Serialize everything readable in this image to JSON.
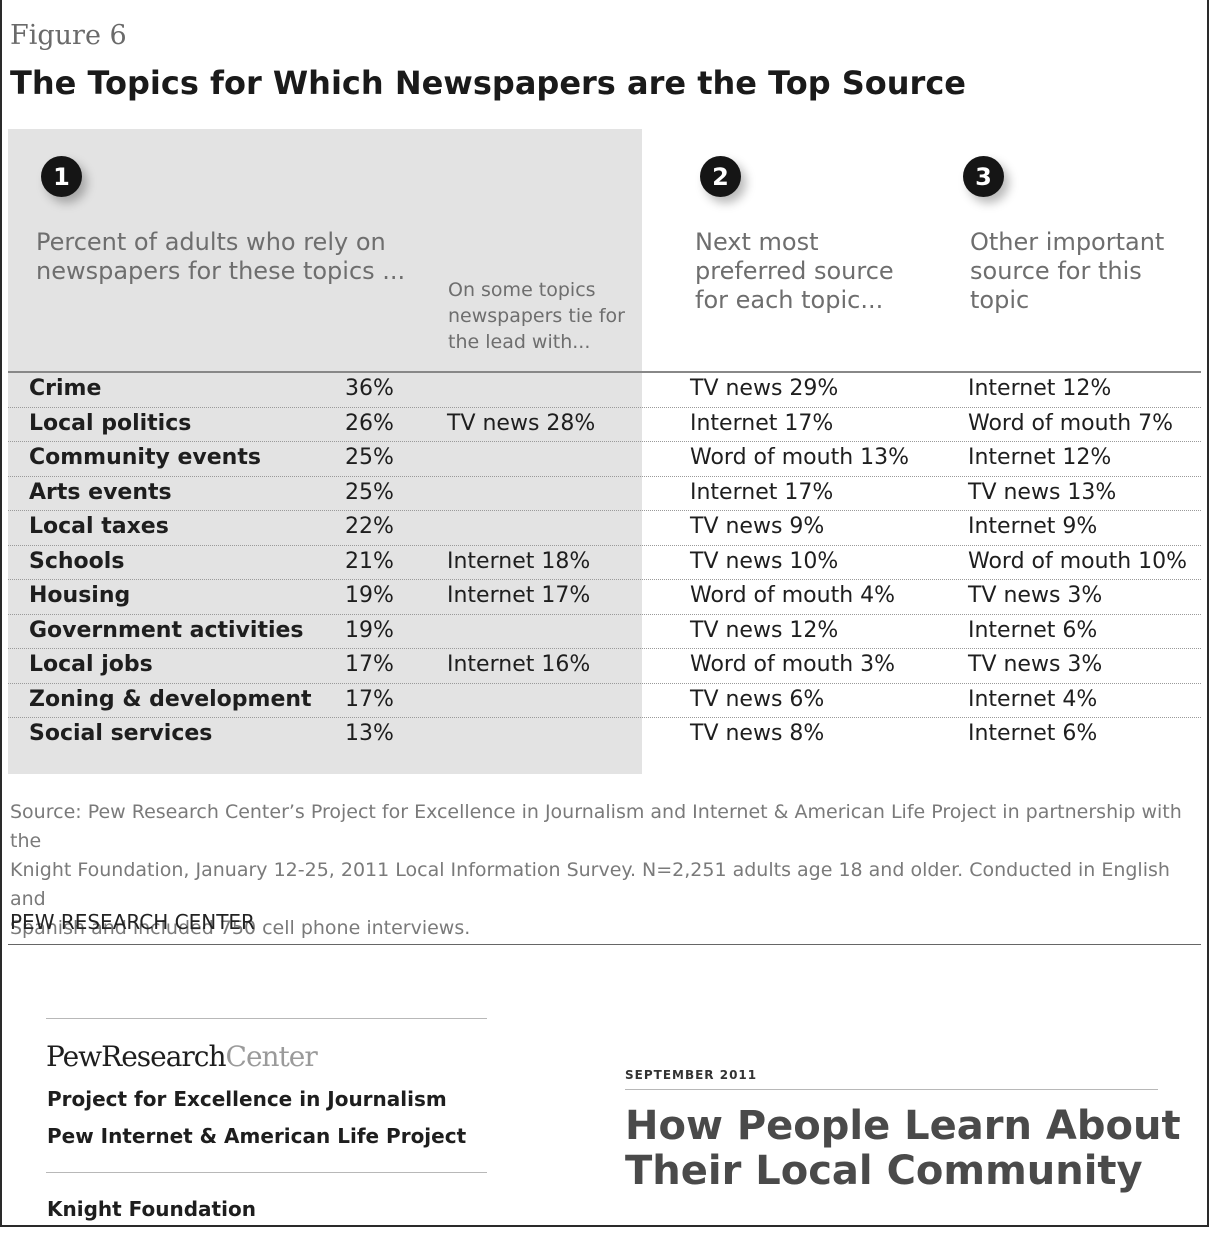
{
  "figure_label": "Figure 6",
  "title": "The Topics for Which Newspapers are the Top Source",
  "columns": {
    "col1": {
      "number": "1",
      "line1": "Percent of adults who rely on",
      "line2": "newspapers for these topics ..."
    },
    "tie": {
      "line1": "On some topics",
      "line2": "newspapers tie for",
      "line3": "the lead with..."
    },
    "col2": {
      "number": "2",
      "line1": "Next most",
      "line2": "preferred source",
      "line3": "for each topic..."
    },
    "col3": {
      "number": "3",
      "line1": "Other important",
      "line2": "source for this",
      "line3": "topic"
    }
  },
  "rows": [
    {
      "topic": "Crime",
      "pct": "36%",
      "tie": "",
      "next": "TV news 29%",
      "other": "Internet 12%"
    },
    {
      "topic": "Local politics",
      "pct": "26%",
      "tie": "TV news 28%",
      "next": "Internet 17%",
      "other": "Word of mouth 7%"
    },
    {
      "topic": "Community events",
      "pct": "25%",
      "tie": "",
      "next": "Word of mouth 13%",
      "other": "Internet 12%"
    },
    {
      "topic": "Arts events",
      "pct": "25%",
      "tie": "",
      "next": "Internet 17%",
      "other": "TV news 13%"
    },
    {
      "topic": "Local taxes",
      "pct": "22%",
      "tie": "",
      "next": "TV news 9%",
      "other": "Internet 9%"
    },
    {
      "topic": "Schools",
      "pct": "21%",
      "tie": "Internet 18%",
      "next": "TV news 10%",
      "other": "Word of mouth 10%"
    },
    {
      "topic": "Housing",
      "pct": "19%",
      "tie": "Internet 17%",
      "next": "Word of mouth 4%",
      "other": "TV news 3%"
    },
    {
      "topic": "Government activities",
      "pct": "19%",
      "tie": "",
      "next": "TV news 12%",
      "other": "Internet 6%"
    },
    {
      "topic": "Local jobs",
      "pct": "17%",
      "tie": "Internet 16%",
      "next": "Word of mouth 3%",
      "other": "TV news 3%"
    },
    {
      "topic": "Zoning & development",
      "pct": "17%",
      "tie": "",
      "next": "TV news 6%",
      "other": "Internet 4%"
    },
    {
      "topic": "Social services",
      "pct": "13%",
      "tie": "",
      "next": "TV news 8%",
      "other": "Internet 6%"
    }
  ],
  "source": {
    "line1": "Source: Pew Research Center’s Project for Excellence in Journalism and Internet & American Life Project in partnership with the",
    "line2": "Knight Foundation, January 12-25, 2011 Local Information Survey. N=2,251 adults age 18 and older. Conducted in English and",
    "line3": "Spanish and included 750 cell phone interviews."
  },
  "org_credit": "PEW RESEARCH CENTER",
  "footer": {
    "logo_bold": "PewResearch",
    "logo_light": "Center",
    "project1": "Project for Excellence in Journalism",
    "project2": "Pew Internet & American Life Project",
    "project3": "Knight Foundation",
    "date": "SEPTEMBER 2011",
    "report_title_line1": "How People Learn About",
    "report_title_line2": "Their Local Community"
  }
}
